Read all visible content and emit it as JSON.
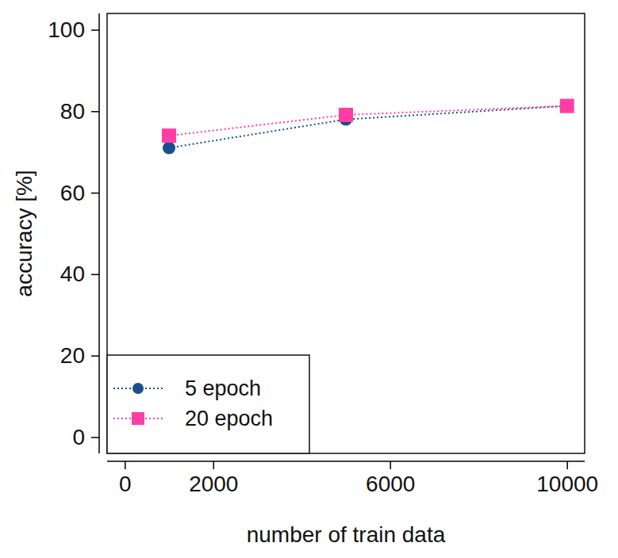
{
  "chart_data": {
    "type": "line",
    "x_label": "number of train data",
    "y_label": "accuracy [%]",
    "x": [
      1000,
      5000,
      10000
    ],
    "series": [
      {
        "name": "5 epoch",
        "color": "#1a4f8b",
        "marker": "circle",
        "line_style": "dotted",
        "values": [
          71,
          78,
          81.3
        ]
      },
      {
        "name": "20 epoch",
        "color": "#ff3ea5",
        "marker": "square",
        "line_style": "dotted",
        "values": [
          74,
          79.1,
          81.3
        ]
      }
    ],
    "xlim": [
      -400,
      10400
    ],
    "xticks": [
      0,
      2000,
      6000,
      10000
    ],
    "ylim": [
      -4,
      104
    ],
    "yticks": [
      0,
      20,
      40,
      60,
      80,
      100
    ],
    "grid": false,
    "legend": "bottom-left"
  }
}
